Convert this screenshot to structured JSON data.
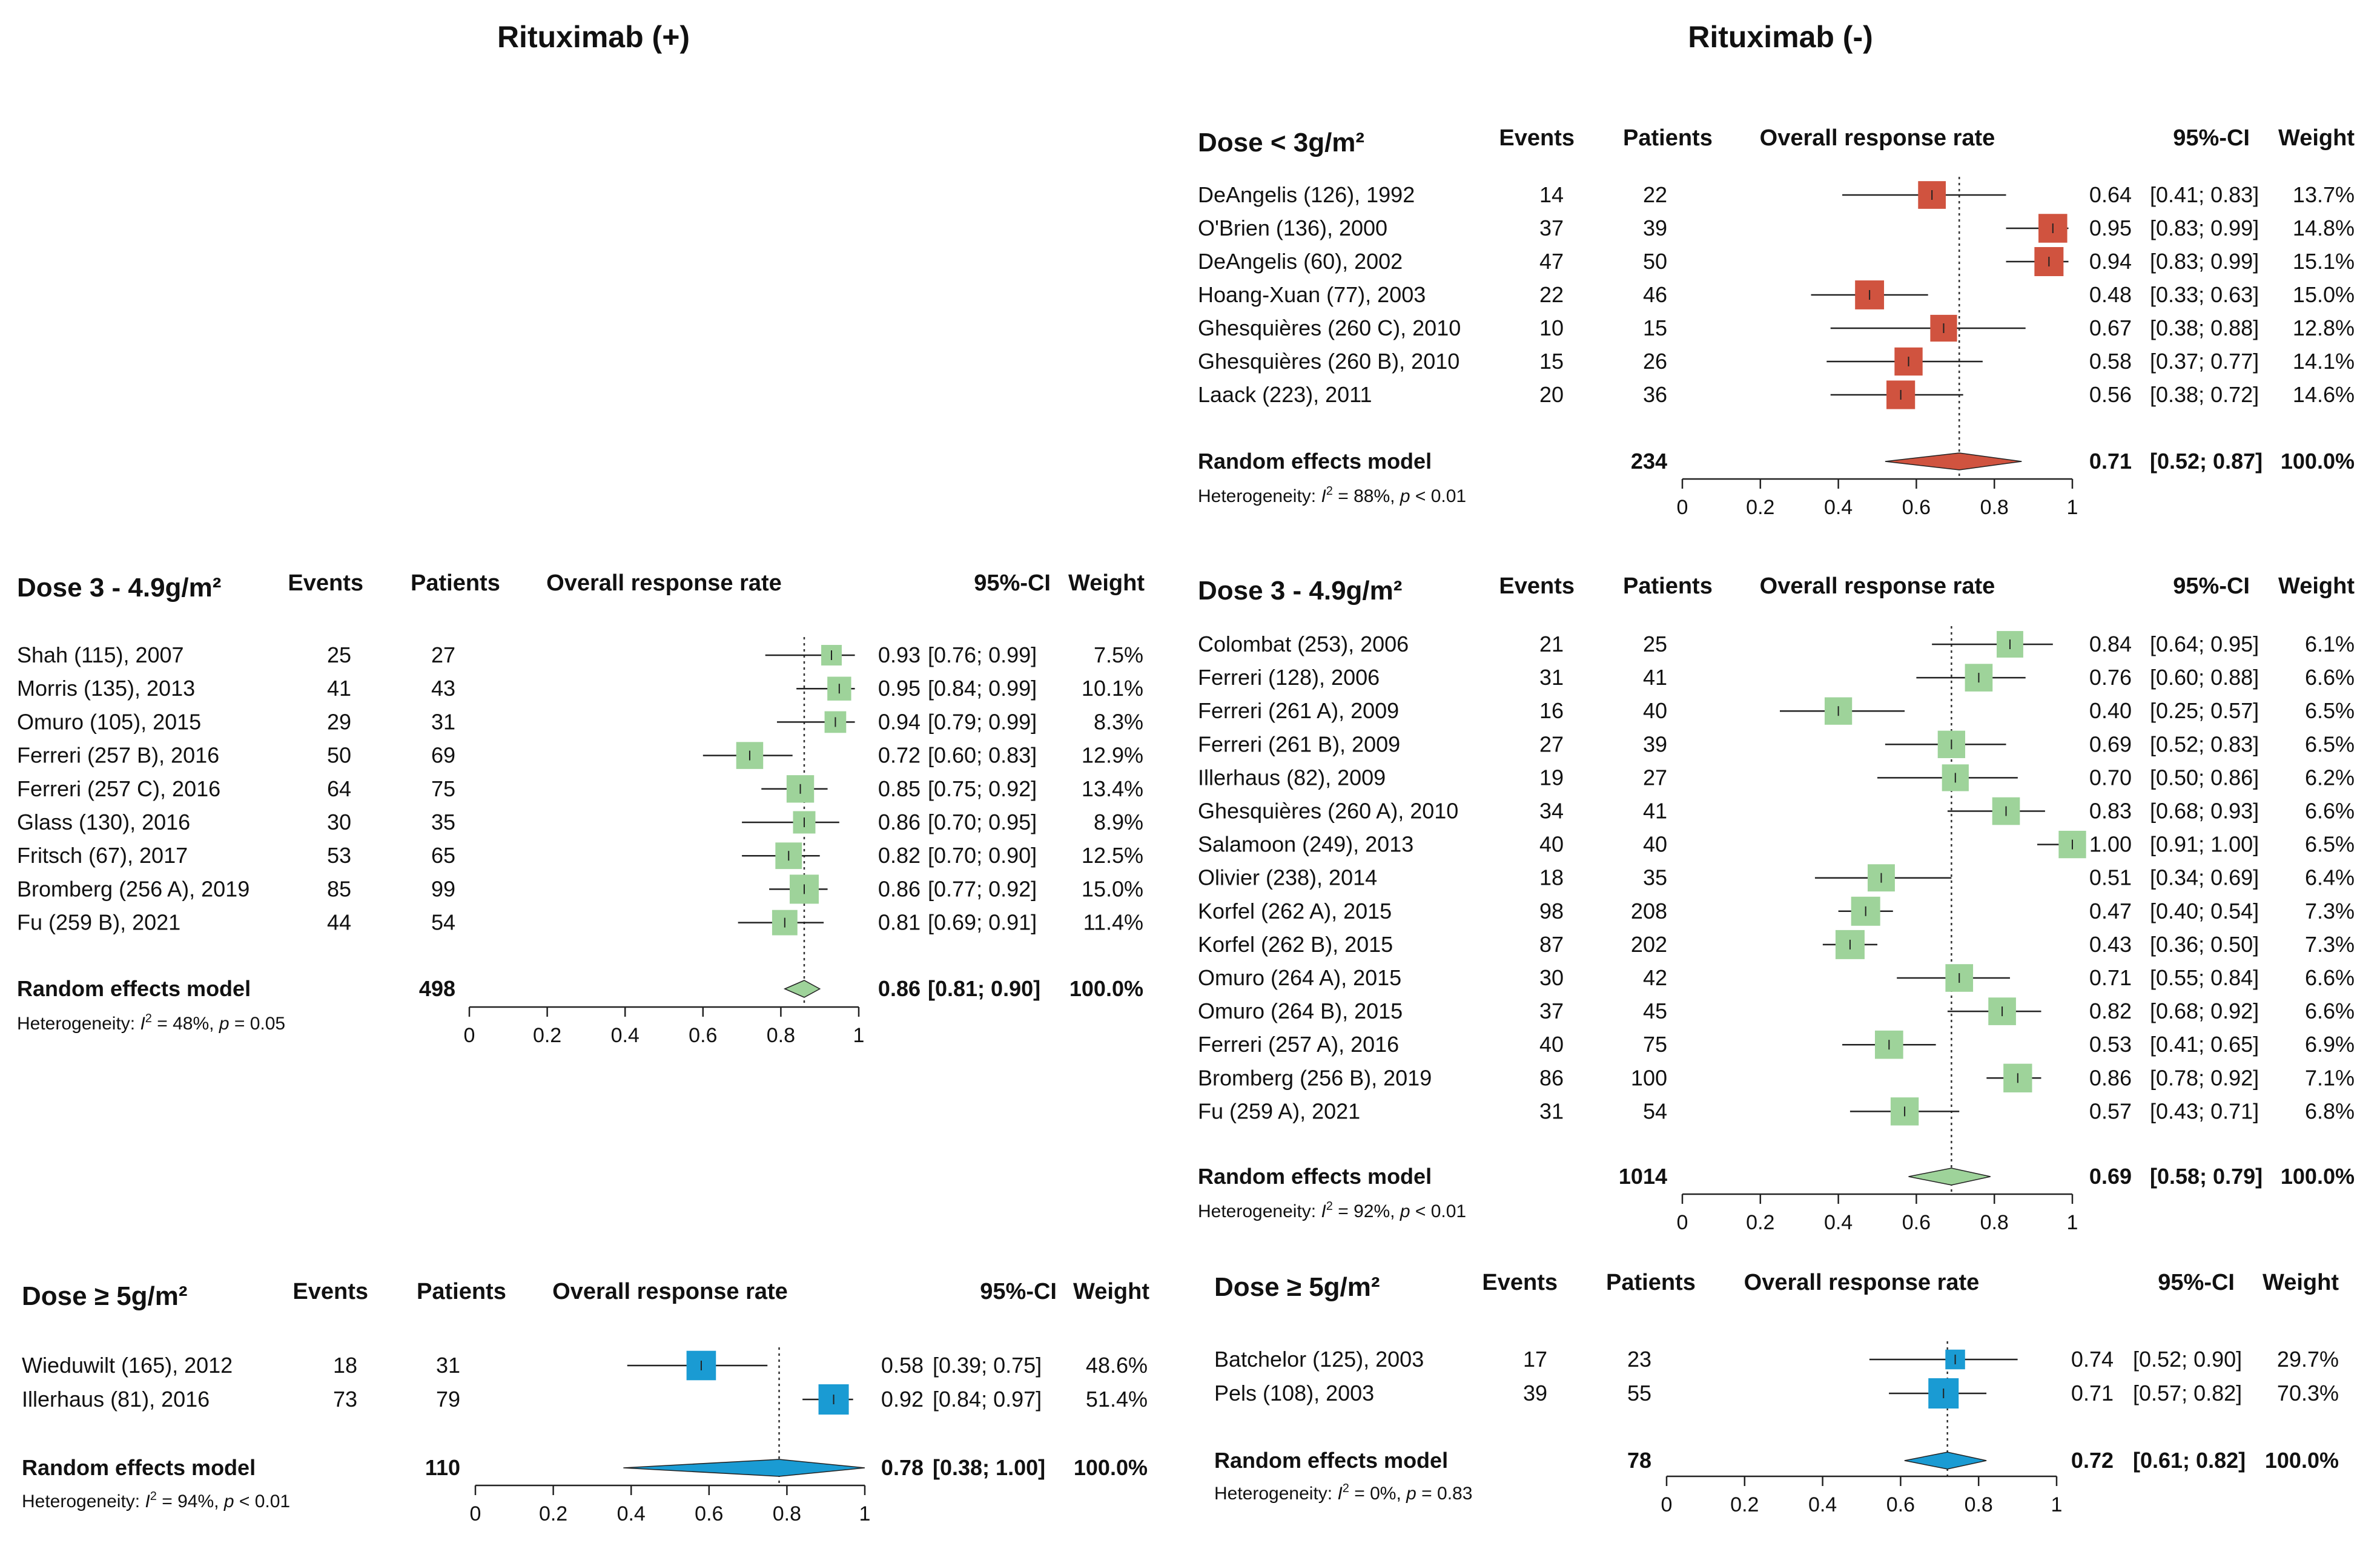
{
  "column_titles": {
    "left": "Rituximab (+)",
    "right": "Rituximab (-)"
  },
  "headers": {
    "events": "Events",
    "patients": "Patients",
    "orr": "Overall response rate",
    "ci": "95%-CI",
    "weight": "Weight"
  },
  "colors": {
    "red": "#d0533f",
    "green": "#9ed39a",
    "blue": "#1a9bd3",
    "line": "#222222"
  },
  "chart_data": [
    {
      "type": "forest",
      "title": "Dose 3 - 4.9g/m²",
      "xlim": [
        0,
        1
      ],
      "ticks": [
        "0",
        "0.2",
        "0.4",
        "0.6",
        "0.8",
        "1"
      ],
      "color": "#9ed39a",
      "studies": [
        {
          "name": "Shah (115), 2007",
          "events": "25",
          "patients": "27",
          "est": 0.93,
          "lo": 0.76,
          "hi": 0.99,
          "est_text": "0.93",
          "ci_text": "[0.76; 0.99]",
          "weight": "7.5%",
          "w": 7.5
        },
        {
          "name": "Morris (135), 2013",
          "events": "41",
          "patients": "43",
          "est": 0.95,
          "lo": 0.84,
          "hi": 0.99,
          "est_text": "0.95",
          "ci_text": "[0.84; 0.99]",
          "weight": "10.1%",
          "w": 10.1
        },
        {
          "name": "Omuro (105), 2015",
          "events": "29",
          "patients": "31",
          "est": 0.94,
          "lo": 0.79,
          "hi": 0.99,
          "est_text": "0.94",
          "ci_text": "[0.79; 0.99]",
          "weight": "8.3%",
          "w": 8.3
        },
        {
          "name": "Ferreri (257 B), 2016",
          "events": "50",
          "patients": "69",
          "est": 0.72,
          "lo": 0.6,
          "hi": 0.83,
          "est_text": "0.72",
          "ci_text": "[0.60; 0.83]",
          "weight": "12.9%",
          "w": 12.9
        },
        {
          "name": "Ferreri (257 C), 2016",
          "events": "64",
          "patients": "75",
          "est": 0.85,
          "lo": 0.75,
          "hi": 0.92,
          "est_text": "0.85",
          "ci_text": "[0.75; 0.92]",
          "weight": "13.4%",
          "w": 13.4
        },
        {
          "name": "Glass (130), 2016",
          "events": "30",
          "patients": "35",
          "est": 0.86,
          "lo": 0.7,
          "hi": 0.95,
          "est_text": "0.86",
          "ci_text": "[0.70; 0.95]",
          "weight": "8.9%",
          "w": 8.9
        },
        {
          "name": "Fritsch (67), 2017",
          "events": "53",
          "patients": "65",
          "est": 0.82,
          "lo": 0.7,
          "hi": 0.9,
          "est_text": "0.82",
          "ci_text": "[0.70; 0.90]",
          "weight": "12.5%",
          "w": 12.5
        },
        {
          "name": "Bromberg (256 A), 2019",
          "events": "85",
          "patients": "99",
          "est": 0.86,
          "lo": 0.77,
          "hi": 0.92,
          "est_text": "0.86",
          "ci_text": "[0.77; 0.92]",
          "weight": "15.0%",
          "w": 15.0
        },
        {
          "name": "Fu (259  B), 2021",
          "events": "44",
          "patients": "54",
          "est": 0.81,
          "lo": 0.69,
          "hi": 0.91,
          "est_text": "0.81",
          "ci_text": "[0.69; 0.91]",
          "weight": "11.4%",
          "w": 11.4
        }
      ],
      "summary": {
        "label": "Random effects model",
        "patients": "498",
        "est": 0.86,
        "lo": 0.81,
        "hi": 0.9,
        "est_text": "0.86",
        "ci_text": "[0.81; 0.90]",
        "weight": "100.0%"
      },
      "heterogeneity": {
        "prefix": "Heterogeneity: ",
        "i2": "I",
        "sup": "2",
        "rest": " = 48%, ",
        "p": "p",
        "pval": " = 0.05"
      }
    },
    {
      "type": "forest",
      "title": "Dose ≥ 5g/m²",
      "xlim": [
        0,
        1
      ],
      "ticks": [
        "0",
        "0.2",
        "0.4",
        "0.6",
        "0.8",
        "1"
      ],
      "color": "#1a9bd3",
      "studies": [
        {
          "name": "Wieduwilt (165), 2012",
          "events": "18",
          "patients": "31",
          "est": 0.58,
          "lo": 0.39,
          "hi": 0.75,
          "est_text": "0.58",
          "ci_text": "[0.39; 0.75]",
          "weight": "48.6%",
          "w": 48.6
        },
        {
          "name": "Illerhaus (81), 2016",
          "events": "73",
          "patients": "79",
          "est": 0.92,
          "lo": 0.84,
          "hi": 0.97,
          "est_text": "0.92",
          "ci_text": "[0.84; 0.97]",
          "weight": "51.4%",
          "w": 51.4
        }
      ],
      "summary": {
        "label": "Random effects model",
        "patients": "110",
        "est": 0.78,
        "lo": 0.38,
        "hi": 1.0,
        "est_text": "0.78",
        "ci_text": "[0.38; 1.00]",
        "weight": "100.0%"
      },
      "heterogeneity": {
        "prefix": "Heterogeneity: ",
        "i2": "I",
        "sup": "2",
        "rest": " = 94%, ",
        "p": "p",
        "pval": " < 0.01"
      }
    },
    {
      "type": "forest",
      "title": "Dose < 3g/m²",
      "xlim": [
        0,
        1
      ],
      "ticks": [
        "0",
        "0.2",
        "0.4",
        "0.6",
        "0.8",
        "1"
      ],
      "color": "#d0533f",
      "studies": [
        {
          "name": "DeAngelis (126), 1992",
          "events": "14",
          "patients": "22",
          "est": 0.64,
          "lo": 0.41,
          "hi": 0.83,
          "est_text": "0.64",
          "ci_text": "[0.41; 0.83]",
          "weight": "13.7%",
          "w": 13.7
        },
        {
          "name": "O'Brien (136), 2000",
          "events": "37",
          "patients": "39",
          "est": 0.95,
          "lo": 0.83,
          "hi": 0.99,
          "est_text": "0.95",
          "ci_text": "[0.83; 0.99]",
          "weight": "14.8%",
          "w": 14.8
        },
        {
          "name": "DeAngelis (60), 2002",
          "events": "47",
          "patients": "50",
          "est": 0.94,
          "lo": 0.83,
          "hi": 0.99,
          "est_text": "0.94",
          "ci_text": "[0.83; 0.99]",
          "weight": "15.1%",
          "w": 15.1
        },
        {
          "name": "Hoang-Xuan (77), 2003",
          "events": "22",
          "patients": "46",
          "est": 0.48,
          "lo": 0.33,
          "hi": 0.63,
          "est_text": "0.48",
          "ci_text": "[0.33; 0.63]",
          "weight": "15.0%",
          "w": 15.0
        },
        {
          "name": "Ghesquières (260 C), 2010",
          "events": "10",
          "patients": "15",
          "est": 0.67,
          "lo": 0.38,
          "hi": 0.88,
          "est_text": "0.67",
          "ci_text": "[0.38; 0.88]",
          "weight": "12.8%",
          "w": 12.8
        },
        {
          "name": "Ghesquières (260 B), 2010",
          "events": "15",
          "patients": "26",
          "est": 0.58,
          "lo": 0.37,
          "hi": 0.77,
          "est_text": "0.58",
          "ci_text": "[0.37; 0.77]",
          "weight": "14.1%",
          "w": 14.1
        },
        {
          "name": "Laack (223), 2011",
          "events": "20",
          "patients": "36",
          "est": 0.56,
          "lo": 0.38,
          "hi": 0.72,
          "est_text": "0.56",
          "ci_text": "[0.38; 0.72]",
          "weight": "14.6%",
          "w": 14.6
        }
      ],
      "summary": {
        "label": "Random effects model",
        "patients": "234",
        "est": 0.71,
        "lo": 0.52,
        "hi": 0.87,
        "est_text": "0.71",
        "ci_text": "[0.52; 0.87]",
        "weight": "100.0%"
      },
      "heterogeneity": {
        "prefix": "Heterogeneity: ",
        "i2": "I",
        "sup": "2",
        "rest": " = 88%, ",
        "p": "p",
        "pval": " < 0.01"
      }
    },
    {
      "type": "forest",
      "title": "Dose 3 - 4.9g/m²",
      "xlim": [
        0,
        1
      ],
      "ticks": [
        "0",
        "0.2",
        "0.4",
        "0.6",
        "0.8",
        "1"
      ],
      "color": "#9ed39a",
      "studies": [
        {
          "name": "Colombat (253), 2006",
          "events": "21",
          "patients": "25",
          "est": 0.84,
          "lo": 0.64,
          "hi": 0.95,
          "est_text": "0.84",
          "ci_text": "[0.64; 0.95]",
          "weight": "6.1%",
          "w": 6.1
        },
        {
          "name": "Ferreri (128), 2006",
          "events": "31",
          "patients": "41",
          "est": 0.76,
          "lo": 0.6,
          "hi": 0.88,
          "est_text": "0.76",
          "ci_text": "[0.60; 0.88]",
          "weight": "6.6%",
          "w": 6.6
        },
        {
          "name": "Ferreri (261 A), 2009",
          "events": "16",
          "patients": "40",
          "est": 0.4,
          "lo": 0.25,
          "hi": 0.57,
          "est_text": "0.40",
          "ci_text": "[0.25; 0.57]",
          "weight": "6.5%",
          "w": 6.5
        },
        {
          "name": "Ferreri (261 B), 2009",
          "events": "27",
          "patients": "39",
          "est": 0.69,
          "lo": 0.52,
          "hi": 0.83,
          "est_text": "0.69",
          "ci_text": "[0.52; 0.83]",
          "weight": "6.5%",
          "w": 6.5
        },
        {
          "name": "Illerhaus (82), 2009",
          "events": "19",
          "patients": "27",
          "est": 0.7,
          "lo": 0.5,
          "hi": 0.86,
          "est_text": "0.70",
          "ci_text": "[0.50; 0.86]",
          "weight": "6.2%",
          "w": 6.2
        },
        {
          "name": "Ghesquières (260 A), 2010",
          "events": "34",
          "patients": "41",
          "est": 0.83,
          "lo": 0.68,
          "hi": 0.93,
          "est_text": "0.83",
          "ci_text": "[0.68; 0.93]",
          "weight": "6.6%",
          "w": 6.6
        },
        {
          "name": "Salamoon (249), 2013",
          "events": "40",
          "patients": "40",
          "est": 1.0,
          "lo": 0.91,
          "hi": 1.0,
          "est_text": "1.00",
          "ci_text": "[0.91; 1.00]",
          "weight": "6.5%",
          "w": 6.5
        },
        {
          "name": "Olivier (238), 2014",
          "events": "18",
          "patients": "35",
          "est": 0.51,
          "lo": 0.34,
          "hi": 0.69,
          "est_text": "0.51",
          "ci_text": "[0.34; 0.69]",
          "weight": "6.4%",
          "w": 6.4
        },
        {
          "name": "Korfel (262 A), 2015",
          "events": "98",
          "patients": "208",
          "est": 0.47,
          "lo": 0.4,
          "hi": 0.54,
          "est_text": "0.47",
          "ci_text": "[0.40; 0.54]",
          "weight": "7.3%",
          "w": 7.3
        },
        {
          "name": "Korfel (262 B), 2015",
          "events": "87",
          "patients": "202",
          "est": 0.43,
          "lo": 0.36,
          "hi": 0.5,
          "est_text": "0.43",
          "ci_text": "[0.36; 0.50]",
          "weight": "7.3%",
          "w": 7.3
        },
        {
          "name": "Omuro (264 A), 2015",
          "events": "30",
          "patients": "42",
          "est": 0.71,
          "lo": 0.55,
          "hi": 0.84,
          "est_text": "0.71",
          "ci_text": "[0.55; 0.84]",
          "weight": "6.6%",
          "w": 6.6
        },
        {
          "name": "Omuro (264 B), 2015",
          "events": "37",
          "patients": "45",
          "est": 0.82,
          "lo": 0.68,
          "hi": 0.92,
          "est_text": "0.82",
          "ci_text": "[0.68; 0.92]",
          "weight": "6.6%",
          "w": 6.6
        },
        {
          "name": "Ferreri (257 A), 2016",
          "events": "40",
          "patients": "75",
          "est": 0.53,
          "lo": 0.41,
          "hi": 0.65,
          "est_text": "0.53",
          "ci_text": "[0.41; 0.65]",
          "weight": "6.9%",
          "w": 6.9
        },
        {
          "name": "Bromberg (256 B), 2019",
          "events": "86",
          "patients": "100",
          "est": 0.86,
          "lo": 0.78,
          "hi": 0.92,
          "est_text": "0.86",
          "ci_text": "[0.78; 0.92]",
          "weight": "7.1%",
          "w": 7.1
        },
        {
          "name": "Fu (259 A), 2021",
          "events": "31",
          "patients": "54",
          "est": 0.57,
          "lo": 0.43,
          "hi": 0.71,
          "est_text": "0.57",
          "ci_text": "[0.43; 0.71]",
          "weight": "6.8%",
          "w": 6.8
        }
      ],
      "summary": {
        "label": "Random effects model",
        "patients": "1014",
        "est": 0.69,
        "lo": 0.58,
        "hi": 0.79,
        "est_text": "0.69",
        "ci_text": "[0.58; 0.79]",
        "weight": "100.0%"
      },
      "heterogeneity": {
        "prefix": "Heterogeneity: ",
        "i2": "I",
        "sup": "2",
        "rest": " = 92%, ",
        "p": "p",
        "pval": " < 0.01"
      }
    },
    {
      "type": "forest",
      "title": "Dose ≥ 5g/m²",
      "xlim": [
        0,
        1
      ],
      "ticks": [
        "0",
        "0.2",
        "0.4",
        "0.6",
        "0.8",
        "1"
      ],
      "color": "#1a9bd3",
      "studies": [
        {
          "name": "Batchelor (125), 2003",
          "events": "17",
          "patients": "23",
          "est": 0.74,
          "lo": 0.52,
          "hi": 0.9,
          "est_text": "0.74",
          "ci_text": "[0.52; 0.90]",
          "weight": "29.7%",
          "w": 29.7
        },
        {
          "name": "Pels (108), 2003",
          "events": "39",
          "patients": "55",
          "est": 0.71,
          "lo": 0.57,
          "hi": 0.82,
          "est_text": "0.71",
          "ci_text": "[0.57; 0.82]",
          "weight": "70.3%",
          "w": 70.3
        }
      ],
      "summary": {
        "label": "Random effects model",
        "patients": "78",
        "est": 0.72,
        "lo": 0.61,
        "hi": 0.82,
        "est_text": "0.72",
        "ci_text": "[0.61; 0.82]",
        "weight": "100.0%"
      },
      "heterogeneity": {
        "prefix": "Heterogeneity: ",
        "i2": "I",
        "sup": "2",
        "rest": " = 0%, ",
        "p": "p",
        "pval": " = 0.83"
      }
    }
  ]
}
